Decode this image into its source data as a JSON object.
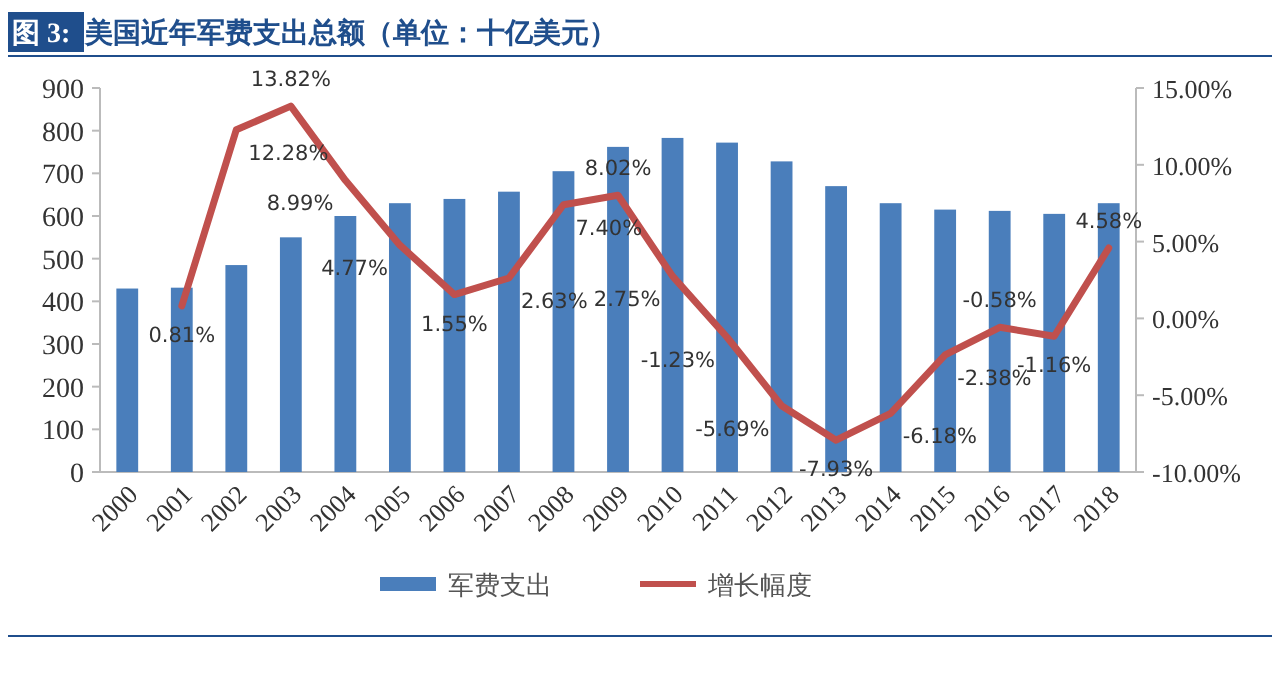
{
  "chart_data": {
    "type": "bar",
    "title": "图 3: 美国近年军费支出总额（单位：十亿美元）",
    "categories": [
      "2000",
      "2001",
      "2002",
      "2003",
      "2004",
      "2005",
      "2006",
      "2007",
      "2008",
      "2009",
      "2010",
      "2011",
      "2012",
      "2013",
      "2014",
      "2015",
      "2016",
      "2017",
      "2018"
    ],
    "series": [
      {
        "name": "军费支出",
        "color": "#4a7ebb",
        "values": [
          430,
          432,
          485,
          550,
          600,
          630,
          640,
          657,
          705,
          762,
          783,
          772,
          728,
          670,
          630,
          615,
          612,
          605,
          630
        ]
      },
      {
        "name": "增长幅度",
        "type": "line",
        "axis": "y2",
        "color": "#c0504d",
        "values": [
          null,
          0.81,
          12.28,
          13.82,
          8.99,
          4.77,
          1.55,
          2.63,
          7.4,
          8.02,
          2.75,
          -1.23,
          -5.69,
          -7.93,
          -6.18,
          -2.38,
          -0.58,
          -1.16,
          4.58
        ],
        "value_labels": [
          null,
          "0.81%",
          "12.28%",
          "13.82%",
          "8.99%",
          "4.77%",
          "1.55%",
          "2.63%",
          "7.40%",
          "8.02%",
          "2.75%",
          "-1.23%",
          "-5.69%",
          "-7.93%",
          "-6.18%",
          "-2.38%",
          "-0.58%",
          "-1.16%",
          "4.58%"
        ]
      }
    ],
    "ylim": [
      0,
      900
    ],
    "yticks": [
      0,
      100,
      200,
      300,
      400,
      500,
      600,
      700,
      800,
      900
    ],
    "y2lim": [
      -10,
      15
    ],
    "y2ticks": [
      {
        "value": -10,
        "label": "-10.00%"
      },
      {
        "value": -5,
        "label": "-5.00%"
      },
      {
        "value": 0,
        "label": "0.00%"
      },
      {
        "value": 5,
        "label": "5.00%"
      },
      {
        "value": 10,
        "label": "10.00%"
      },
      {
        "value": 15,
        "label": "15.00%"
      }
    ],
    "legend": "bottom",
    "marker": "none",
    "line_style": "solid"
  }
}
